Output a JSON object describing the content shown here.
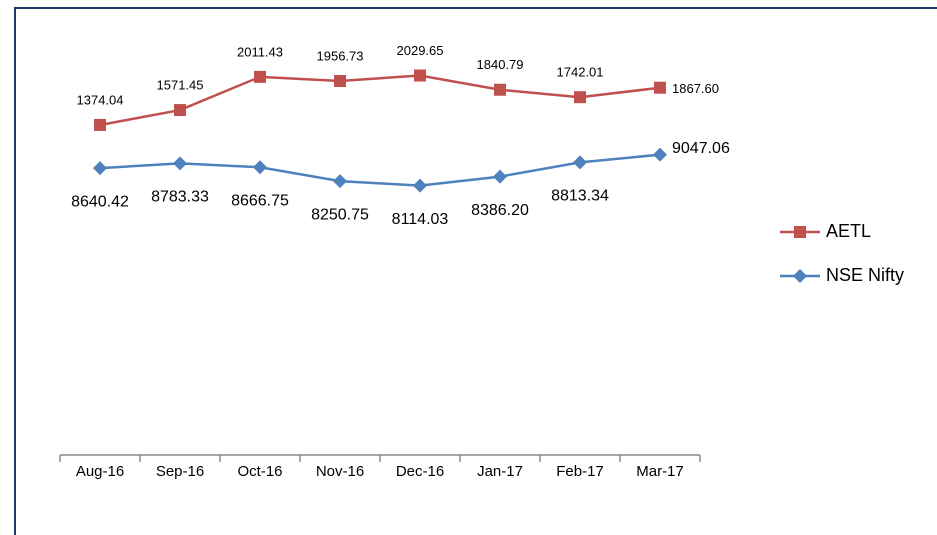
{
  "chart_data": {
    "type": "line",
    "categories": [
      "Aug-16",
      "Sep-16",
      "Oct-16",
      "Nov-16",
      "Dec-16",
      "Jan-17",
      "Feb-17",
      "Mar-17"
    ],
    "series": [
      {
        "name": "AETL",
        "color": "#c0504d",
        "marker": "square",
        "values": [
          1374.04,
          1571.45,
          2011.43,
          1956.73,
          2029.65,
          1840.79,
          1742.01,
          1867.6
        ],
        "value_labels": [
          "1374.04",
          "1571.45",
          "2011.43",
          "1956.73",
          "2029.65",
          "1840.79",
          "1742.01",
          "1867.60"
        ]
      },
      {
        "name": "NSE Nifty",
        "color": "#4f81bd",
        "marker": "diamond",
        "axis": "y2",
        "values": [
          8640.42,
          8783.33,
          8666.75,
          8250.75,
          8114.03,
          8386.2,
          8813.34,
          9047.06
        ],
        "value_labels": [
          "8640.42",
          "8783.33",
          "8666.75",
          "8250.75",
          "8114.03",
          "8386.20",
          "8813.34",
          "9047.06"
        ]
      }
    ],
    "ylim": [
      -3000,
      2500
    ],
    "y2lim": [
      0,
      12500
    ],
    "legend": "right"
  }
}
